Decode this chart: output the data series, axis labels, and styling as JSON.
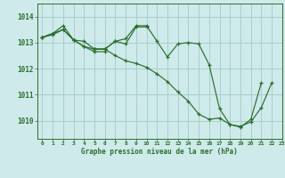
{
  "title": "Graphe pression niveau de la mer (hPa)",
  "bg_color": "#ceeaea",
  "grid_color": "#aacece",
  "line_color": "#2d6e2d",
  "marker_color": "#2d6e2d",
  "xlim": [
    -0.5,
    23
  ],
  "ylim": [
    1009.3,
    1014.5
  ],
  "yticks": [
    1010,
    1011,
    1012,
    1013,
    1014
  ],
  "xticks": [
    0,
    1,
    2,
    3,
    4,
    5,
    6,
    7,
    8,
    9,
    10,
    11,
    12,
    13,
    14,
    15,
    16,
    17,
    18,
    19,
    20,
    21,
    22,
    23
  ],
  "series": [
    {
      "x": [
        0,
        1,
        2,
        3,
        4,
        5,
        6,
        7,
        8,
        9,
        10,
        11,
        12,
        13,
        14,
        15,
        16,
        17,
        18,
        19,
        20,
        21
      ],
      "y": [
        1013.2,
        1013.35,
        1013.65,
        1013.1,
        1013.05,
        1012.75,
        1012.75,
        1013.05,
        1013.15,
        1013.65,
        1013.65,
        1013.05,
        1012.45,
        1012.95,
        1013.0,
        1012.95,
        1012.15,
        1010.45,
        1009.85,
        1009.75,
        1010.05,
        1011.45
      ]
    },
    {
      "x": [
        0,
        1,
        2,
        3,
        4,
        5,
        6
      ],
      "y": [
        1013.2,
        1013.35,
        1013.5,
        1013.1,
        1012.85,
        1012.65,
        1012.65
      ]
    },
    {
      "x": [
        5,
        6,
        7,
        8,
        9,
        10
      ],
      "y": [
        1012.75,
        1012.75,
        1013.05,
        1012.95,
        1013.6,
        1013.6
      ]
    },
    {
      "x": [
        0,
        1,
        2,
        3,
        4,
        5,
        6,
        7,
        8,
        9,
        10,
        11,
        12,
        13,
        14,
        15,
        16,
        17,
        18,
        19,
        20,
        21,
        22
      ],
      "y": [
        1013.2,
        1013.3,
        1013.5,
        1013.1,
        1012.85,
        1012.75,
        1012.75,
        1012.5,
        1012.3,
        1012.2,
        1012.05,
        1011.8,
        1011.5,
        1011.1,
        1010.75,
        1010.25,
        1010.05,
        1010.1,
        1009.85,
        1009.78,
        1009.95,
        1010.5,
        1011.45
      ]
    }
  ]
}
